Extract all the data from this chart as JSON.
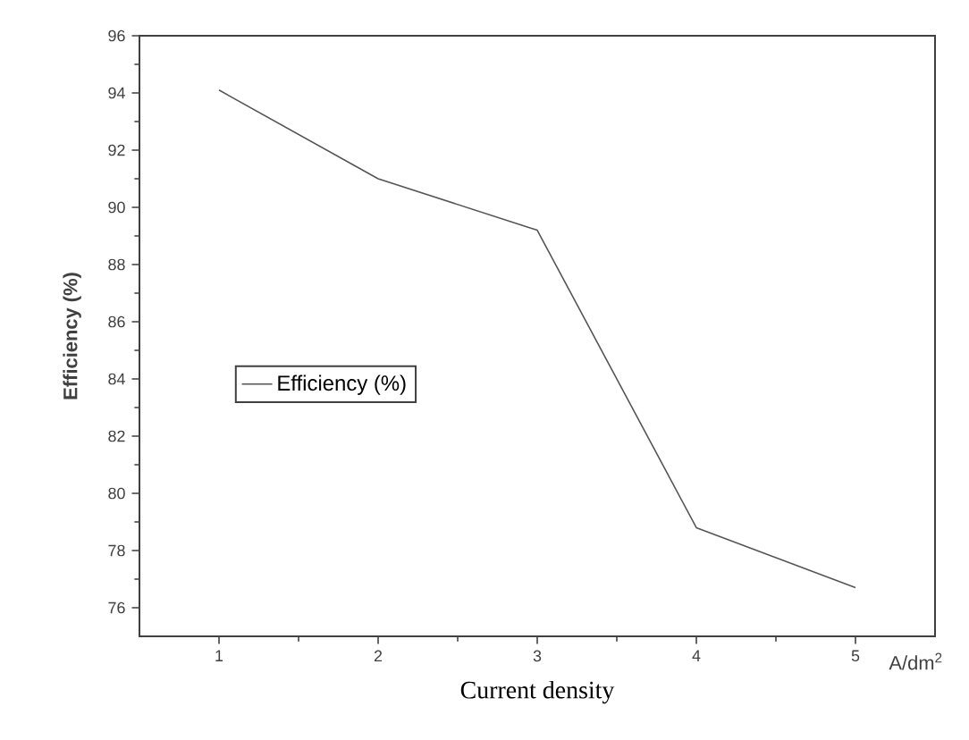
{
  "chart_data": {
    "type": "line",
    "xlabel": "Current density",
    "ylabel": "Efficiency (%)",
    "annotations": [
      "A/dm$^{2}$"
    ],
    "x": [
      1,
      2,
      3,
      4,
      5
    ],
    "series": [
      {
        "name": "Efficiency (%)",
        "color": "#555555",
        "values": [
          94.1,
          91.0,
          89.2,
          78.8,
          76.7
        ]
      }
    ],
    "xlim": [
      0.5,
      5.5
    ],
    "xticks": [
      1,
      2,
      3,
      4,
      5
    ],
    "ylim": [
      75,
      96
    ],
    "yticks": [
      76,
      78,
      80,
      82,
      84,
      86,
      88,
      90,
      92,
      94,
      96
    ],
    "grid": false,
    "legend": "left",
    "marker": "none",
    "line_style": "solid"
  }
}
